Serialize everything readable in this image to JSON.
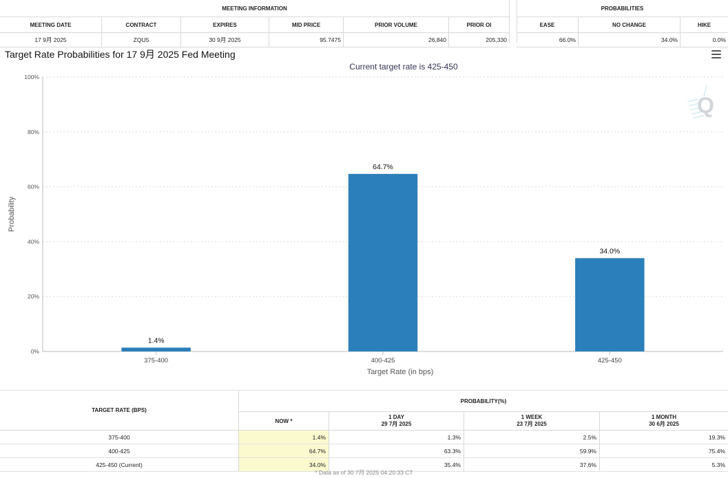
{
  "meeting_info": {
    "section_title": "MEETING INFORMATION",
    "columns": [
      "MEETING DATE",
      "CONTRACT",
      "EXPIRES",
      "MID PRICE",
      "PRIOR VOLUME",
      "PRIOR OI"
    ],
    "row": [
      "17 9月 2025",
      "ZQU5",
      "30 9月 2025",
      "95.7475",
      "26,840",
      "205,330"
    ]
  },
  "probabilities": {
    "section_title": "PROBABILITIES",
    "columns": [
      "EASE",
      "NO CHANGE",
      "HIKE"
    ],
    "row": [
      "66.0%",
      "34.0%",
      "0.0%"
    ]
  },
  "chart": {
    "title": "Target Rate Probabilities for 17 9月 2025 Fed Meeting",
    "menu_icon": "hamburger-menu-icon",
    "logo_text": "Q",
    "bar_color": "#2b7fba"
  },
  "chart_data": {
    "type": "bar",
    "title": "Target Rate Probabilities for 17 9月 2025 Fed Meeting",
    "subtitle": "Current target rate is 425-450",
    "categories": [
      "375-400",
      "400-425",
      "425-450"
    ],
    "values": [
      1.4,
      64.7,
      34.0
    ],
    "data_labels": [
      "1.4%",
      "64.7%",
      "34.0%"
    ],
    "xlabel": "Target Rate (in bps)",
    "ylabel": "Probability",
    "ylim": [
      0,
      100
    ],
    "yticks": [
      0,
      20,
      40,
      60,
      80,
      100
    ],
    "ytick_labels": [
      "0%",
      "20%",
      "40%",
      "60%",
      "80%",
      "100%"
    ],
    "grid": true
  },
  "history": {
    "rate_header": "TARGET RATE (BPS)",
    "prob_header": "PROBABILITY(%)",
    "columns": [
      {
        "label": "NOW *",
        "date": ""
      },
      {
        "label": "1 DAY",
        "date": "29 7月 2025"
      },
      {
        "label": "1 WEEK",
        "date": "23 7月 2025"
      },
      {
        "label": "1 MONTH",
        "date": "30 6月 2025"
      }
    ],
    "rows": [
      {
        "rate": "375-400",
        "values": [
          "1.4%",
          "1.3%",
          "2.5%",
          "19.3%"
        ]
      },
      {
        "rate": "400-425",
        "values": [
          "64.7%",
          "63.3%",
          "59.9%",
          "75.4%"
        ]
      },
      {
        "rate": "425-450 (Current)",
        "values": [
          "34.0%",
          "35.4%",
          "37.6%",
          "5.3%"
        ]
      }
    ],
    "footnote": "* Data as of 30 7月 2025 04:20:33 CT"
  }
}
